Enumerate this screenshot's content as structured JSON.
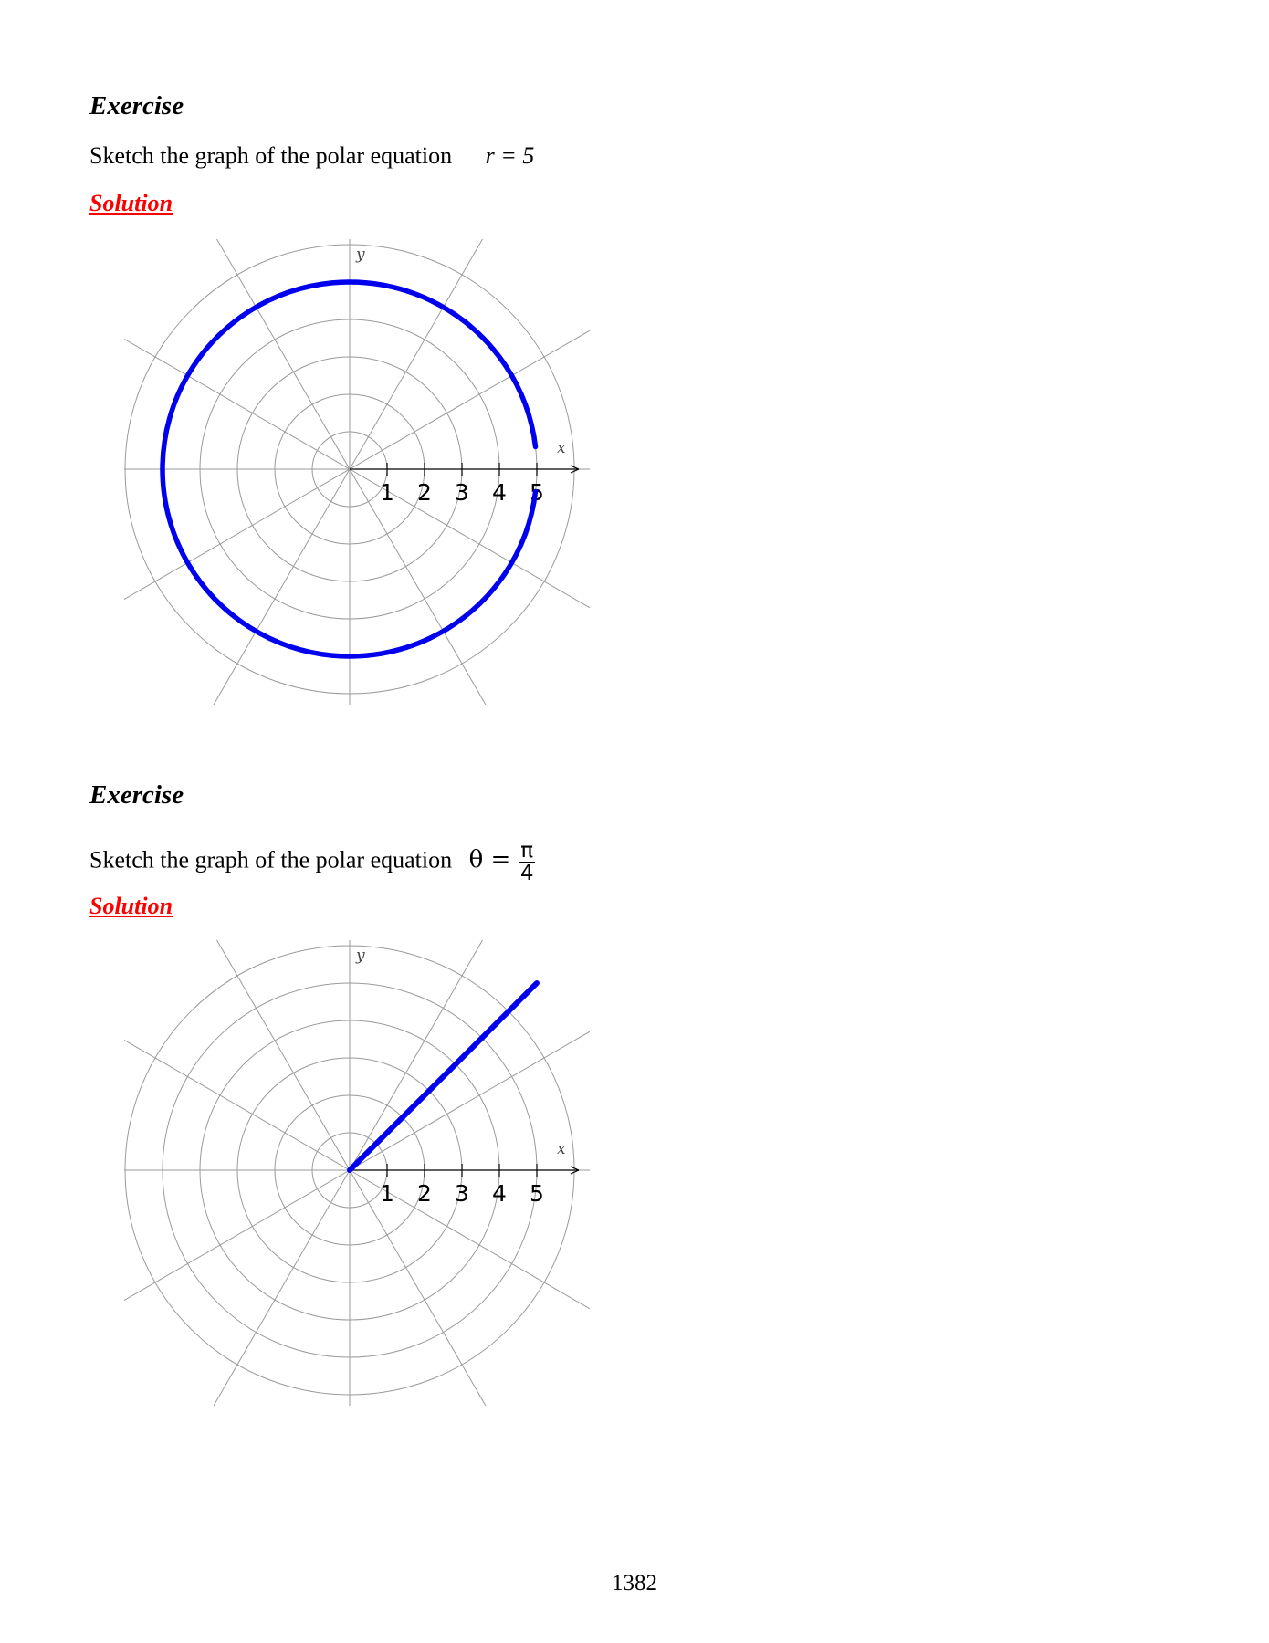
{
  "exercises": [
    {
      "heading": "Exercise",
      "prompt": "Sketch the graph of the polar equation",
      "equation": "r = 5",
      "solution_label": "Solution",
      "chart_data": {
        "type": "polar",
        "equation": "r = 5",
        "axis_labels": {
          "x": "x",
          "y": "y"
        },
        "tick_labels": [
          "1",
          "2",
          "3",
          "4",
          "5"
        ],
        "radial_rings": [
          1,
          2,
          3,
          4,
          5,
          6
        ],
        "spoke_angles_deg": [
          0,
          30,
          60,
          90,
          120,
          150,
          180,
          210,
          240,
          270,
          300,
          330
        ],
        "curve": {
          "kind": "circle",
          "r": 5,
          "color": "#0000ee"
        }
      }
    },
    {
      "heading": "Exercise",
      "prompt": "Sketch the graph of the polar equation",
      "equation_lhs": "θ =",
      "equation_num": "π",
      "equation_den": "4",
      "solution_label": "Solution",
      "chart_data": {
        "type": "polar",
        "equation": "θ = π/4",
        "axis_labels": {
          "x": "x",
          "y": "y"
        },
        "tick_labels": [
          "1",
          "2",
          "3",
          "4",
          "5"
        ],
        "radial_rings": [
          1,
          2,
          3,
          4,
          5,
          6
        ],
        "spoke_angles_deg": [
          0,
          30,
          60,
          90,
          120,
          150,
          180,
          210,
          240,
          270,
          300,
          330
        ],
        "curve": {
          "kind": "ray",
          "theta_deg": 45,
          "r_max": 7.07,
          "color": "#0000ee"
        }
      }
    }
  ],
  "page_number": "1382"
}
